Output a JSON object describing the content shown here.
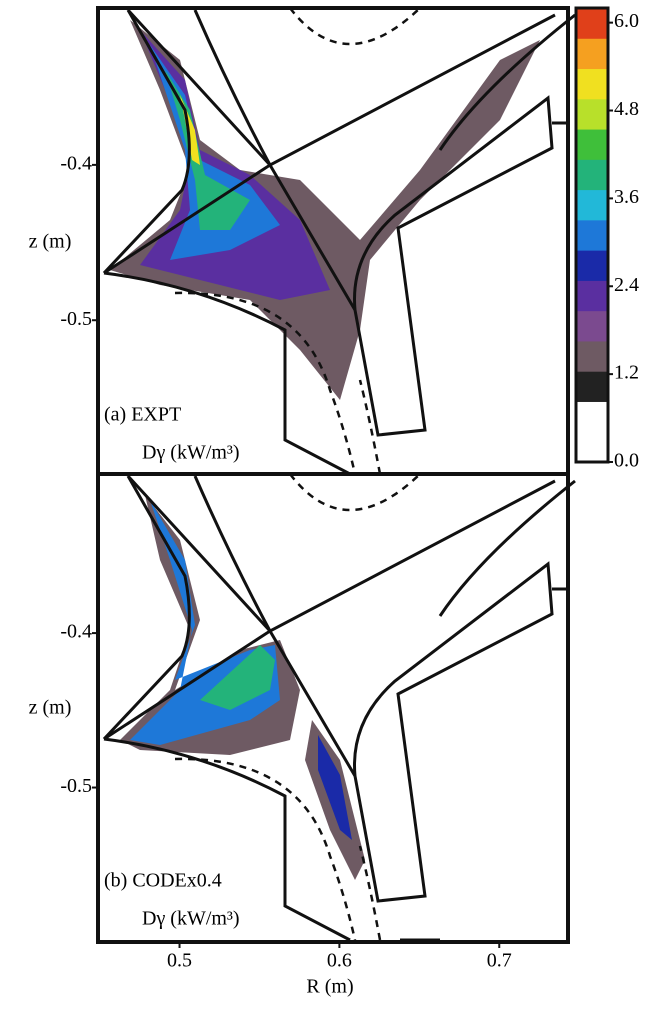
{
  "chart_data": [
    {
      "type": "contour",
      "panel_label": "(a) EXPT",
      "quantity": "Dγ (kW/m³)",
      "y_label": "z (m)",
      "xlim": [
        0.449,
        0.743
      ],
      "ylim": [
        -0.599,
        -0.299
      ],
      "yticks": [
        -0.4,
        -0.5
      ]
    },
    {
      "type": "contour",
      "panel_label": "(b) CODEx0.4",
      "quantity": "Dγ (kW/m³)",
      "y_label": "z (m)",
      "x_label": "R (m)",
      "xlim": [
        0.449,
        0.743
      ],
      "ylim": [
        -0.6,
        -0.297
      ],
      "yticks": [
        -0.4,
        -0.5
      ],
      "xticks": [
        0.5,
        0.6,
        0.7
      ]
    }
  ],
  "colorbar": {
    "clim": [
      0,
      6.2
    ],
    "ticks": [
      {
        "value": 0,
        "label": "0.0"
      },
      1.2,
      2.4,
      3.6,
      4.8,
      {
        "value": 6,
        "label": "6.0"
      }
    ],
    "colors": [
      "#ffffff",
      "#ffffff",
      "#222222",
      "#6e5a63",
      "#7b4a8f",
      "#5a2fa0",
      "#1a2aa8",
      "#1e78d8",
      "#22b8d8",
      "#23b37a",
      "#3fbf3a",
      "#b8e02a",
      "#f0e020",
      "#f5a020",
      "#e0401a"
    ]
  }
}
